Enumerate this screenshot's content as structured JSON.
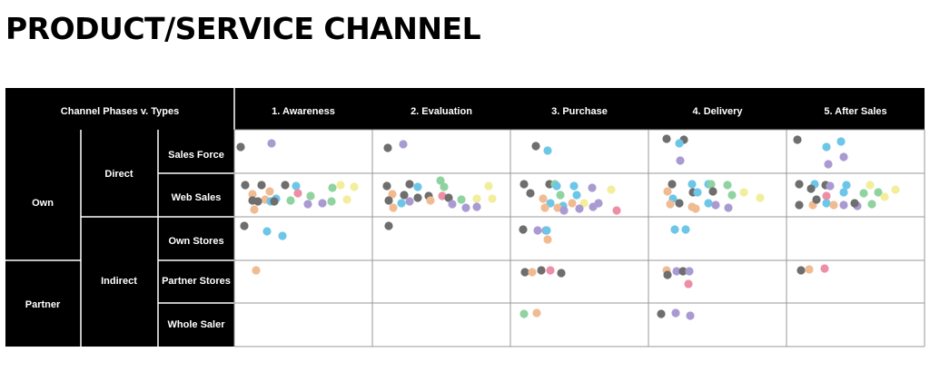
{
  "title": "PRODUCT/SERVICE CHANNEL",
  "corner_label": "Channel Phases v. Types",
  "phases": [
    "1. Awareness",
    "2. Evaluation",
    "3. Purchase",
    "4. Delivery",
    "5. After Sales"
  ],
  "owner_groups": [
    "Own",
    "Partner"
  ],
  "mode_groups": [
    "Direct",
    "Indirect"
  ],
  "channel_types": [
    "Sales Force",
    "Web Sales",
    "Own Stores",
    "Partner Stores",
    "Whole Saler"
  ],
  "colors": {
    "gray": "#6e6e6e",
    "purple": "#a99bd2",
    "blue": "#6cc6e8",
    "green": "#8fd3a0",
    "orange": "#f1bb92",
    "pink": "#ee8ea6",
    "yellow": "#f2ee9c",
    "header_bg": "#000000",
    "grid_line": "#999999"
  }
}
